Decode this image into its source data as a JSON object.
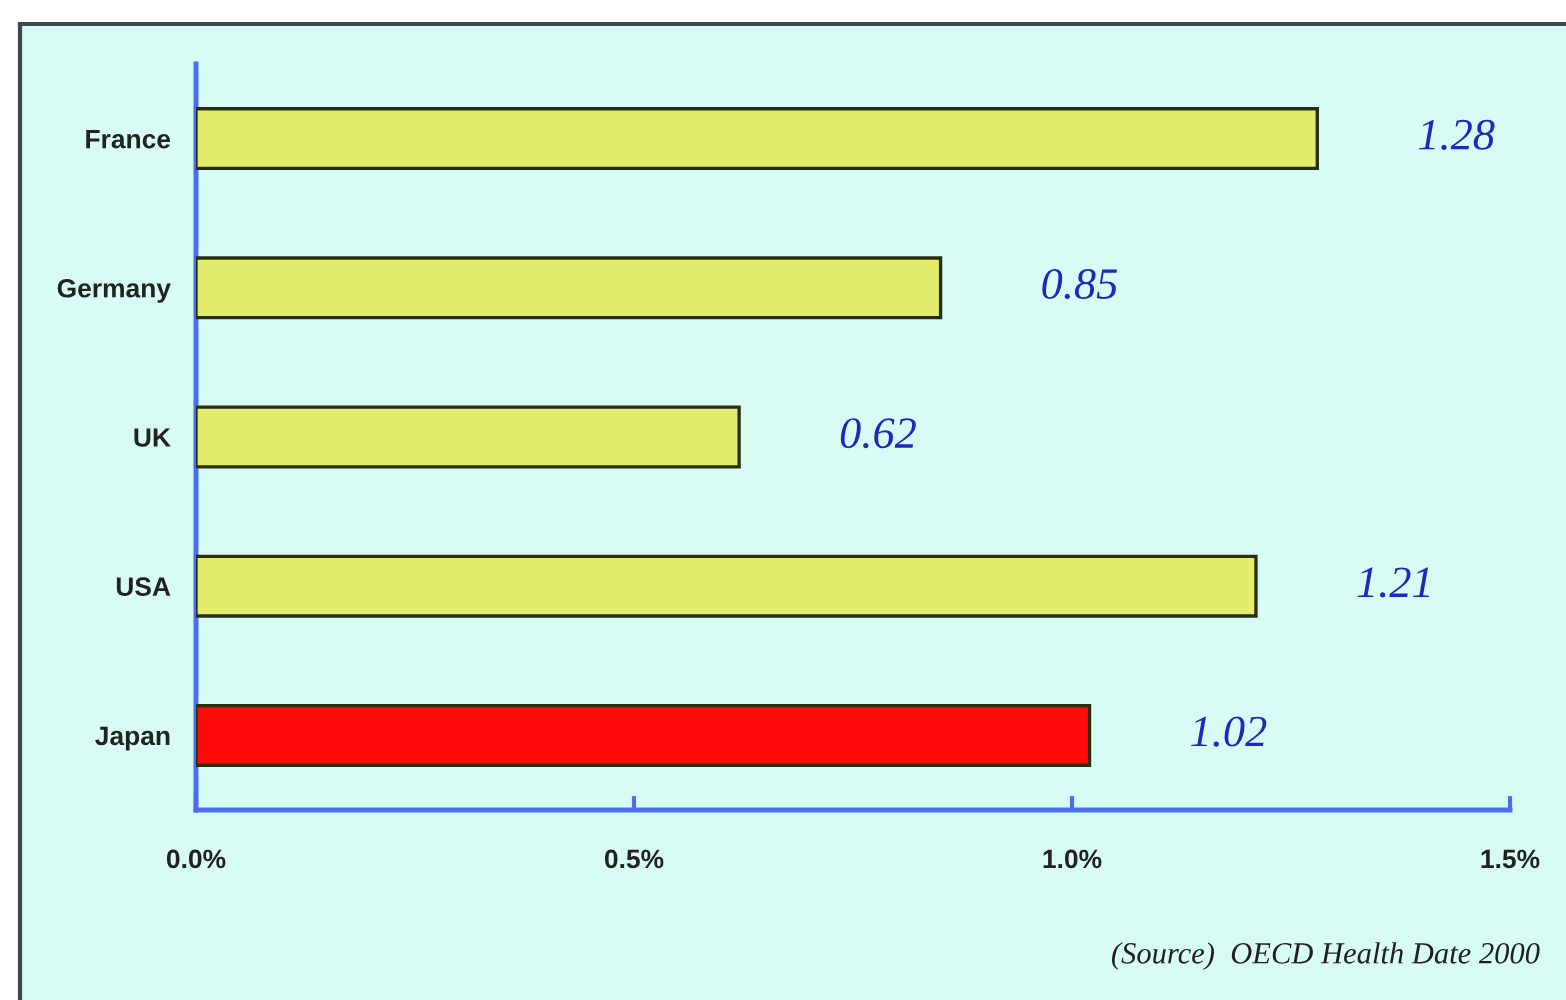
{
  "chart_data": {
    "type": "bar",
    "orientation": "horizontal",
    "categories": [
      "France",
      "Germany",
      "UK",
      "USA",
      "Japan"
    ],
    "values": [
      1.28,
      0.85,
      0.62,
      1.21,
      1.02
    ],
    "colors": [
      "#e4ec6c",
      "#e4ec6c",
      "#e4ec6c",
      "#e4ec6c",
      "#ff0a0a"
    ],
    "xlim": [
      0,
      1.5
    ],
    "xticks": [
      {
        "value": 0,
        "label": "0.0%"
      },
      {
        "value": 0.5,
        "label": "0.5%"
      },
      {
        "value": 1.0,
        "label": "1.0%"
      },
      {
        "value": 1.5,
        "label": "1.5%"
      }
    ],
    "data_labels": true,
    "grid": false,
    "legend": false,
    "annotations": [
      "(Source)  OECD Health Date 2000"
    ]
  }
}
